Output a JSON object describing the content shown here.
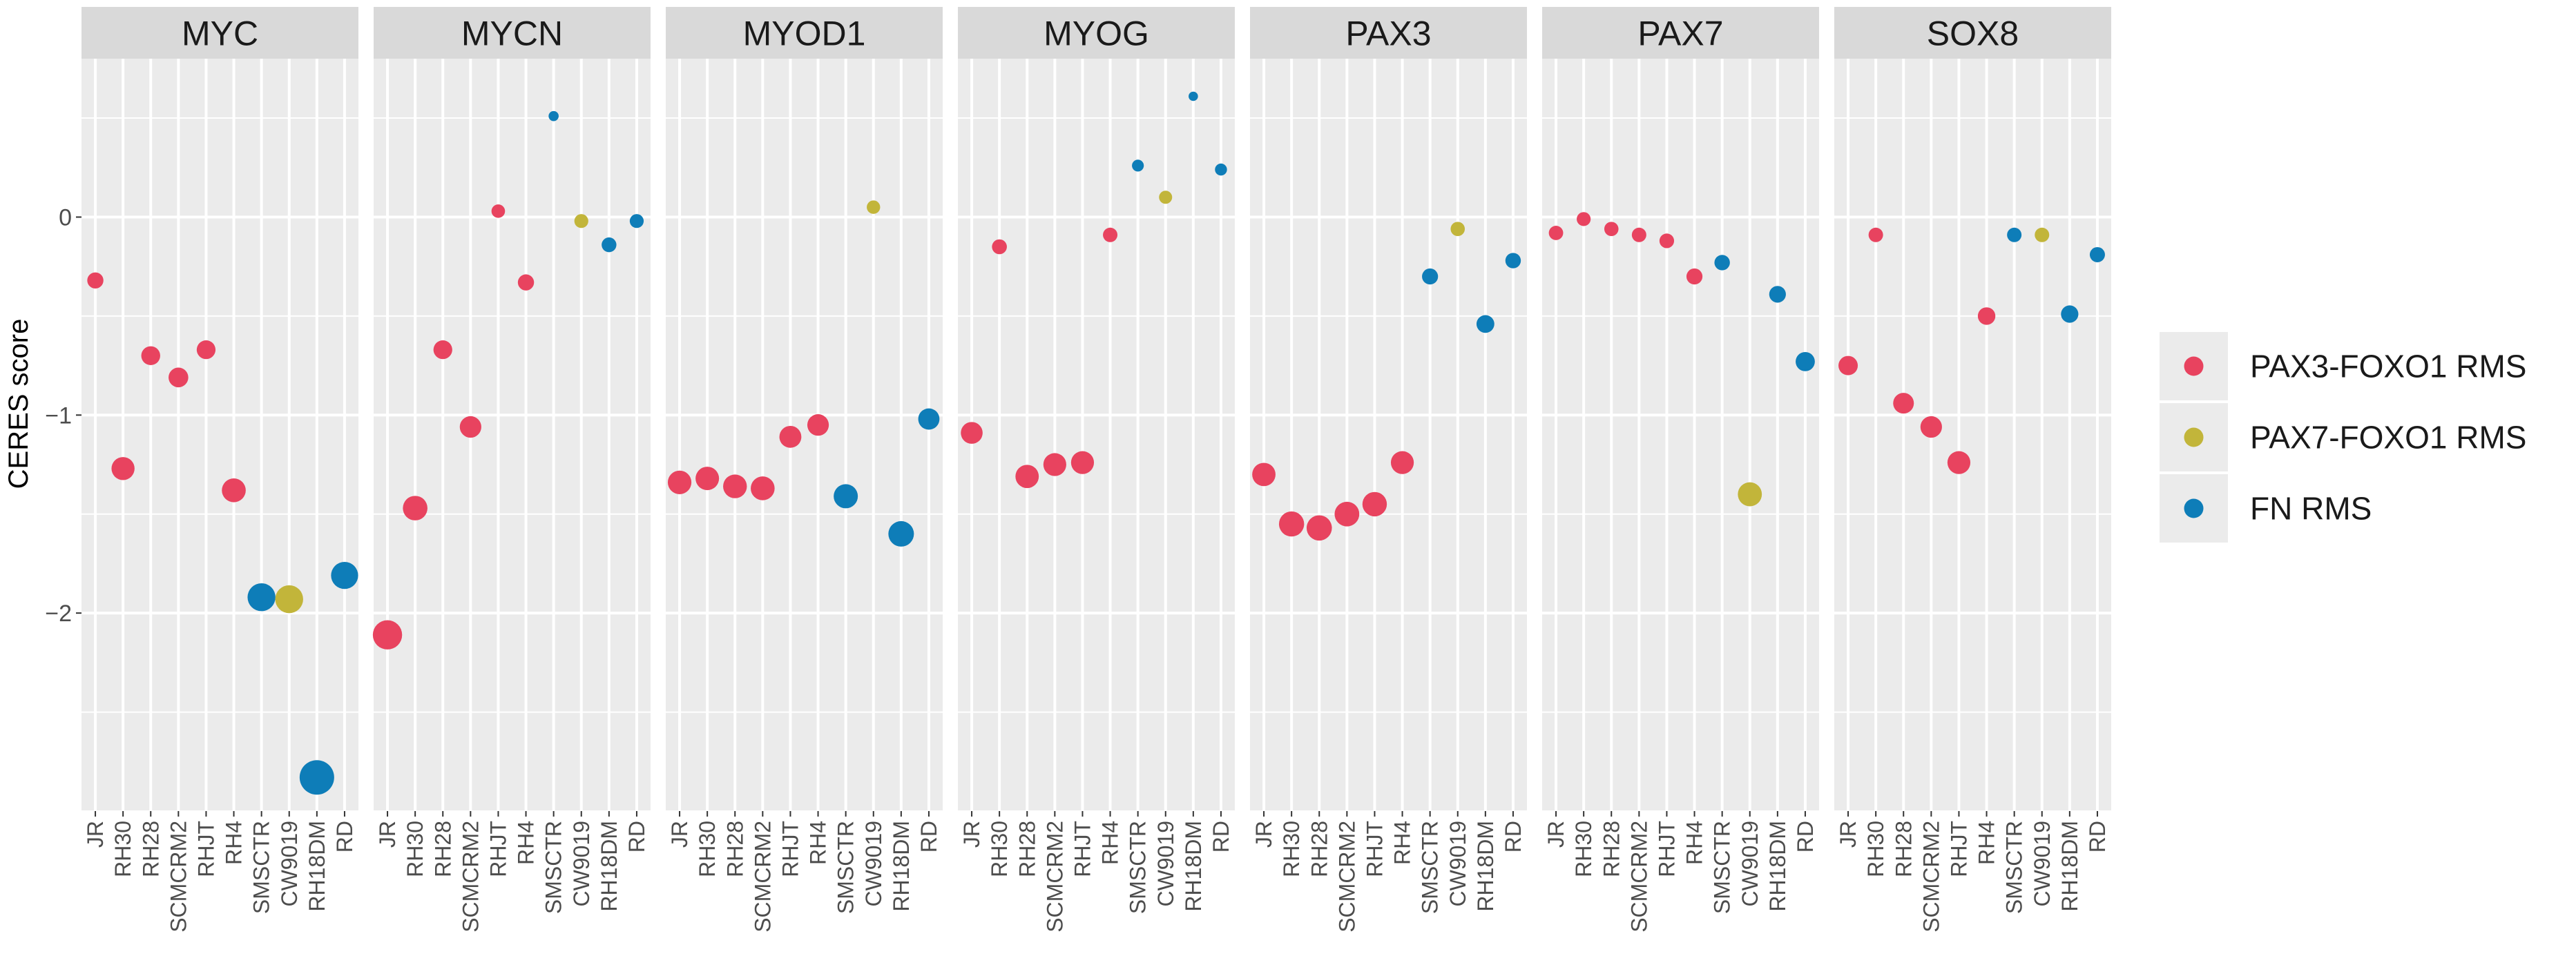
{
  "chart_data": {
    "type": "scatter",
    "ylabel": "CERES score",
    "ylim": [
      -3.0,
      0.8
    ],
    "y_ticks": [
      0,
      -1,
      -2
    ],
    "y_tick_labels": [
      "0",
      "−1",
      "−2"
    ],
    "grid": true,
    "legend_position": "right",
    "cell_lines": [
      "JR",
      "RH30",
      "RH28",
      "SCMCRM2",
      "RHJT",
      "RH4",
      "SMSCTR",
      "CW9019",
      "RH18DM",
      "RD"
    ],
    "groups": [
      {
        "name": "PAX3-FOXO1 RMS",
        "color": "#E8435F"
      },
      {
        "name": "PAX7-FOXO1 RMS",
        "color": "#C2B53A"
      },
      {
        "name": "FN RMS",
        "color": "#0E7DB8"
      }
    ],
    "cell_line_group": [
      "PAX3-FOXO1 RMS",
      "PAX3-FOXO1 RMS",
      "PAX3-FOXO1 RMS",
      "PAX3-FOXO1 RMS",
      "PAX3-FOXO1 RMS",
      "PAX3-FOXO1 RMS",
      "FN RMS",
      "PAX7-FOXO1 RMS",
      "FN RMS",
      "FN RMS"
    ],
    "panels": [
      {
        "gene": "MYC",
        "values": [
          -0.32,
          -1.27,
          -0.7,
          -0.81,
          -0.67,
          -1.38,
          -1.92,
          -1.93,
          -2.83,
          -1.81
        ]
      },
      {
        "gene": "MYCN",
        "values": [
          -2.11,
          -1.47,
          -0.67,
          -1.06,
          0.03,
          -0.33,
          0.51,
          -0.02,
          -0.14,
          -0.02
        ]
      },
      {
        "gene": "MYOD1",
        "values": [
          -1.34,
          -1.32,
          -1.36,
          -1.37,
          -1.11,
          -1.05,
          -1.41,
          0.05,
          -1.6,
          -1.02
        ]
      },
      {
        "gene": "MYOG",
        "values": [
          -1.09,
          -0.15,
          -1.31,
          -1.25,
          -1.24,
          -0.09,
          0.26,
          0.1,
          0.61,
          0.24
        ]
      },
      {
        "gene": "PAX3",
        "values": [
          -1.3,
          -1.55,
          -1.57,
          -1.5,
          -1.45,
          -1.24,
          -0.3,
          -0.06,
          -0.54,
          -0.22
        ]
      },
      {
        "gene": "PAX7",
        "values": [
          -0.08,
          -0.01,
          -0.06,
          -0.09,
          -0.12,
          -0.3,
          -0.23,
          -1.4,
          -0.39,
          -0.73
        ]
      },
      {
        "gene": "SOX8",
        "values": [
          -0.75,
          -0.09,
          -0.94,
          -1.06,
          -1.24,
          -0.5,
          -0.09,
          -0.09,
          -0.49,
          -0.19
        ]
      }
    ]
  }
}
